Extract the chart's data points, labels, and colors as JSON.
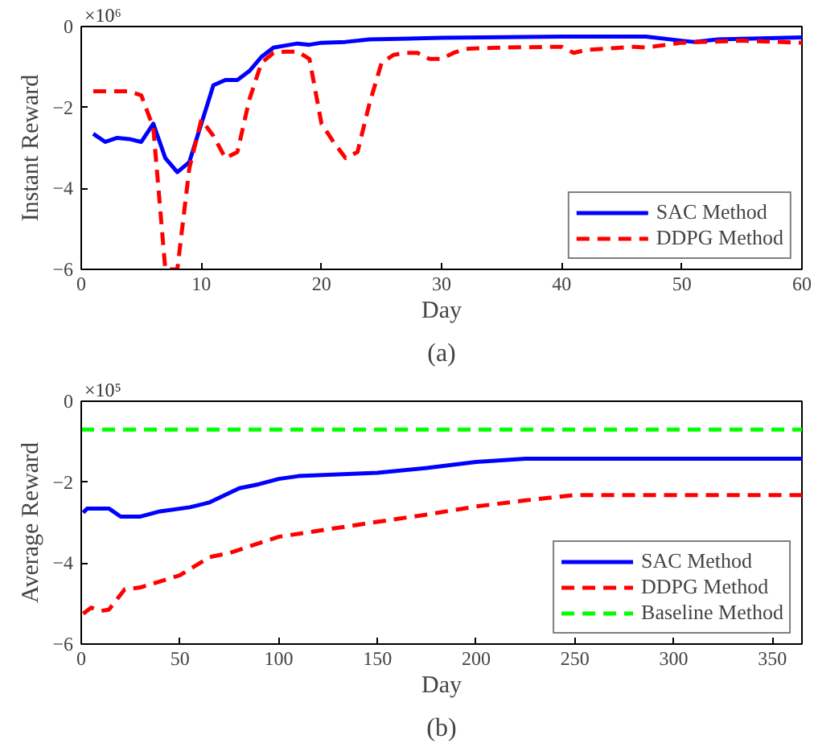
{
  "chart_data": [
    {
      "type": "line",
      "xlabel": "Day",
      "ylabel": "Instant Reward",
      "xlim": [
        0,
        60
      ],
      "ylim": [
        -6,
        0
      ],
      "xticks": [
        0,
        10,
        20,
        30,
        40,
        50,
        60
      ],
      "yticks": [
        -6,
        -4,
        -2,
        0
      ],
      "grid": false,
      "legend": "bottom right",
      "annotations": [
        "×10⁶",
        "(a)"
      ],
      "series": [
        {
          "name": "SAC Method",
          "color": "#0000ff",
          "line_style": "solid",
          "x": [
            1,
            2,
            3,
            4,
            5,
            6,
            7,
            8,
            9,
            10,
            11,
            12,
            13,
            14,
            15,
            16,
            17,
            18,
            19,
            20,
            22,
            24,
            30,
            40,
            47,
            50,
            51,
            53,
            60
          ],
          "values": [
            -2.65,
            -2.85,
            -2.75,
            -2.78,
            -2.85,
            -2.4,
            -3.25,
            -3.6,
            -3.35,
            -2.4,
            -1.45,
            -1.32,
            -1.32,
            -1.1,
            -0.75,
            -0.52,
            -0.47,
            -0.42,
            -0.45,
            -0.4,
            -0.38,
            -0.32,
            -0.28,
            -0.25,
            -0.25,
            -0.35,
            -0.38,
            -0.32,
            -0.27
          ]
        },
        {
          "name": "DDPG Method",
          "color": "#ff0000",
          "line_style": "dashed",
          "x": [
            1,
            4,
            5,
            6,
            7,
            8,
            9,
            10,
            11,
            12,
            13,
            14,
            15,
            16,
            17,
            18,
            19,
            20,
            21,
            22,
            23,
            24,
            25,
            26,
            27,
            28,
            29,
            30,
            31,
            32,
            35,
            40,
            41,
            42,
            46,
            47,
            50,
            55,
            60
          ],
          "values": [
            -1.6,
            -1.6,
            -1.7,
            -2.5,
            -6.0,
            -6.0,
            -3.5,
            -2.3,
            -2.7,
            -3.25,
            -3.1,
            -1.8,
            -0.9,
            -0.65,
            -0.62,
            -0.62,
            -0.8,
            -2.4,
            -2.85,
            -3.25,
            -3.1,
            -1.9,
            -0.9,
            -0.7,
            -0.65,
            -0.65,
            -0.8,
            -0.8,
            -0.65,
            -0.55,
            -0.52,
            -0.5,
            -0.65,
            -0.58,
            -0.5,
            -0.52,
            -0.4,
            -0.35,
            -0.4
          ]
        }
      ]
    },
    {
      "type": "line",
      "xlabel": "Day",
      "ylabel": "Average Reward",
      "xlim": [
        0,
        365
      ],
      "ylim": [
        -6,
        0
      ],
      "xticks": [
        0,
        50,
        100,
        150,
        200,
        250,
        300,
        350
      ],
      "yticks": [
        -6,
        -4,
        -2,
        0
      ],
      "grid": false,
      "legend": "bottom right",
      "annotations": [
        "×10⁵",
        "(b)"
      ],
      "series": [
        {
          "name": "SAC Method",
          "color": "#0000ff",
          "line_style": "solid",
          "x": [
            1,
            3,
            10,
            14,
            20,
            30,
            40,
            55,
            65,
            80,
            90,
            100,
            110,
            150,
            175,
            200,
            225,
            365
          ],
          "values": [
            -2.75,
            -2.65,
            -2.65,
            -2.65,
            -2.85,
            -2.85,
            -2.72,
            -2.62,
            -2.5,
            -2.15,
            -2.05,
            -1.92,
            -1.85,
            -1.77,
            -1.65,
            -1.5,
            -1.42,
            -1.42
          ]
        },
        {
          "name": "DDPG Method",
          "color": "#ff0000",
          "line_style": "dashed",
          "x": [
            1,
            5,
            10,
            14,
            22,
            30,
            50,
            65,
            75,
            100,
            150,
            175,
            200,
            225,
            250,
            365
          ],
          "values": [
            -5.25,
            -5.1,
            -5.18,
            -5.15,
            -4.65,
            -4.6,
            -4.3,
            -3.85,
            -3.75,
            -3.35,
            -2.98,
            -2.8,
            -2.6,
            -2.45,
            -2.32,
            -2.32
          ]
        },
        {
          "name": "Baseline Method",
          "color": "#00ff00",
          "line_style": "dashed",
          "x": [
            0,
            365
          ],
          "values": [
            -0.7,
            -0.7
          ]
        }
      ]
    }
  ]
}
